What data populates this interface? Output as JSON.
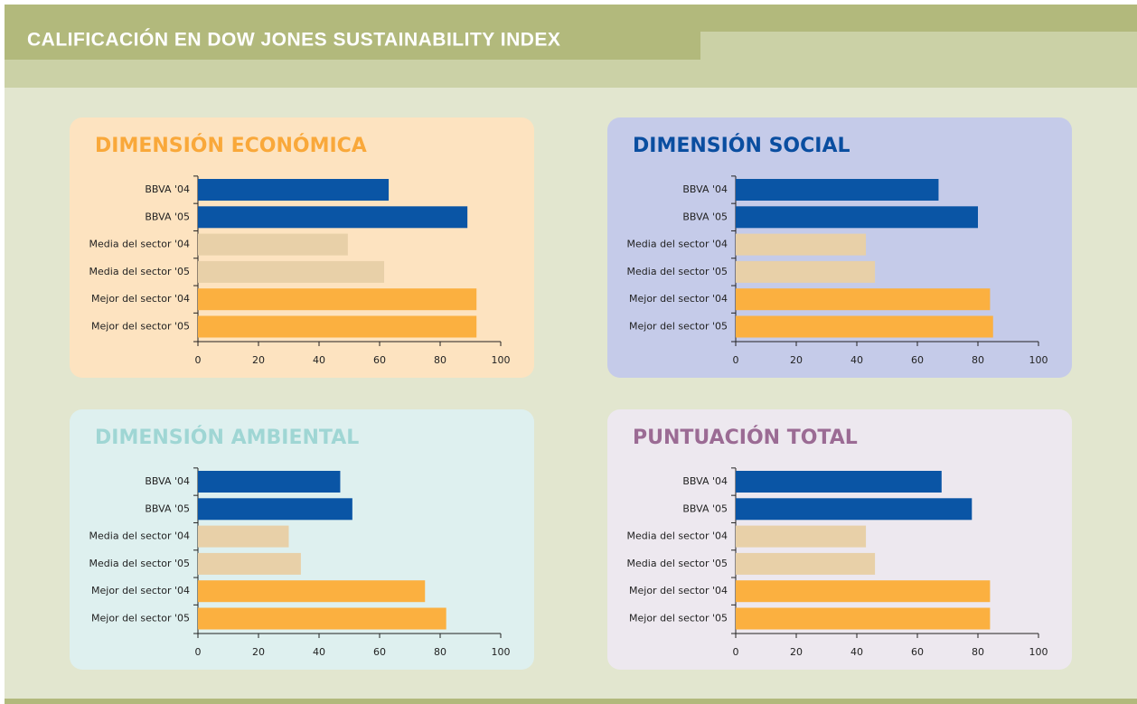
{
  "header": {
    "title": "CALIFICACIÓN EN DOW JONES SUSTAINABILITY INDEX"
  },
  "chart_data": [
    {
      "type": "bar",
      "orientation": "horizontal",
      "title": "DIMENSIÓN ECONÓMICA",
      "title_color": "#f9a83a",
      "background": "#fde3c0",
      "categories": [
        "BBVA '04",
        "BBVA '05",
        "Media del sector '04",
        "Media del sector '05",
        "Mejor del sector '04",
        "Mejor del sector '05"
      ],
      "values": [
        63,
        89,
        49.5,
        61.5,
        92,
        92
      ],
      "colors": [
        "#0a55a5",
        "#0a55a5",
        "#e8d0a8",
        "#e8d0a8",
        "#fbb040",
        "#fbb040"
      ],
      "xlim": [
        0,
        100
      ],
      "xticks": [
        0,
        20,
        40,
        60,
        80,
        100
      ]
    },
    {
      "type": "bar",
      "orientation": "horizontal",
      "title": "DIMENSIÓN SOCIAL",
      "title_color": "#0a4ea0",
      "background": "#c5cbe9",
      "categories": [
        "BBVA '04",
        "BBVA '05",
        "Media del sector '04",
        "Media del sector '05",
        "Mejor del sector '04",
        "Mejor del sector '05"
      ],
      "values": [
        67,
        80,
        43,
        46,
        84,
        85
      ],
      "colors": [
        "#0a55a5",
        "#0a55a5",
        "#e8d0a8",
        "#e8d0a8",
        "#fbb040",
        "#fbb040"
      ],
      "xlim": [
        0,
        100
      ],
      "xticks": [
        0,
        20,
        40,
        60,
        80,
        100
      ]
    },
    {
      "type": "bar",
      "orientation": "horizontal",
      "title": "DIMENSIÓN AMBIENTAL",
      "title_color": "#9fd6d4",
      "background": "#def0ef",
      "categories": [
        "BBVA '04",
        "BBVA '05",
        "Media del sector '04",
        "Media del sector '05",
        "Mejor del sector '04",
        "Mejor del sector '05"
      ],
      "values": [
        47,
        51,
        30,
        34,
        75,
        82
      ],
      "colors": [
        "#0a55a5",
        "#0a55a5",
        "#e8d0a8",
        "#e8d0a8",
        "#fbb040",
        "#fbb040"
      ],
      "xlim": [
        0,
        100
      ],
      "xticks": [
        0,
        20,
        40,
        60,
        80,
        100
      ]
    },
    {
      "type": "bar",
      "orientation": "horizontal",
      "title": "PUNTUACIÓN TOTAL",
      "title_color": "#9b6b94",
      "background": "#ede8ef",
      "categories": [
        "BBVA '04",
        "BBVA '05",
        "Media del sector '04",
        "Media del sector '05",
        "Mejor del sector '04",
        "Mejor del sector '05"
      ],
      "values": [
        68,
        78,
        43,
        46,
        84,
        84
      ],
      "colors": [
        "#0a55a5",
        "#0a55a5",
        "#e8d0a8",
        "#e8d0a8",
        "#fbb040",
        "#fbb040"
      ],
      "xlim": [
        0,
        100
      ],
      "xticks": [
        0,
        20,
        40,
        60,
        80,
        100
      ]
    }
  ]
}
